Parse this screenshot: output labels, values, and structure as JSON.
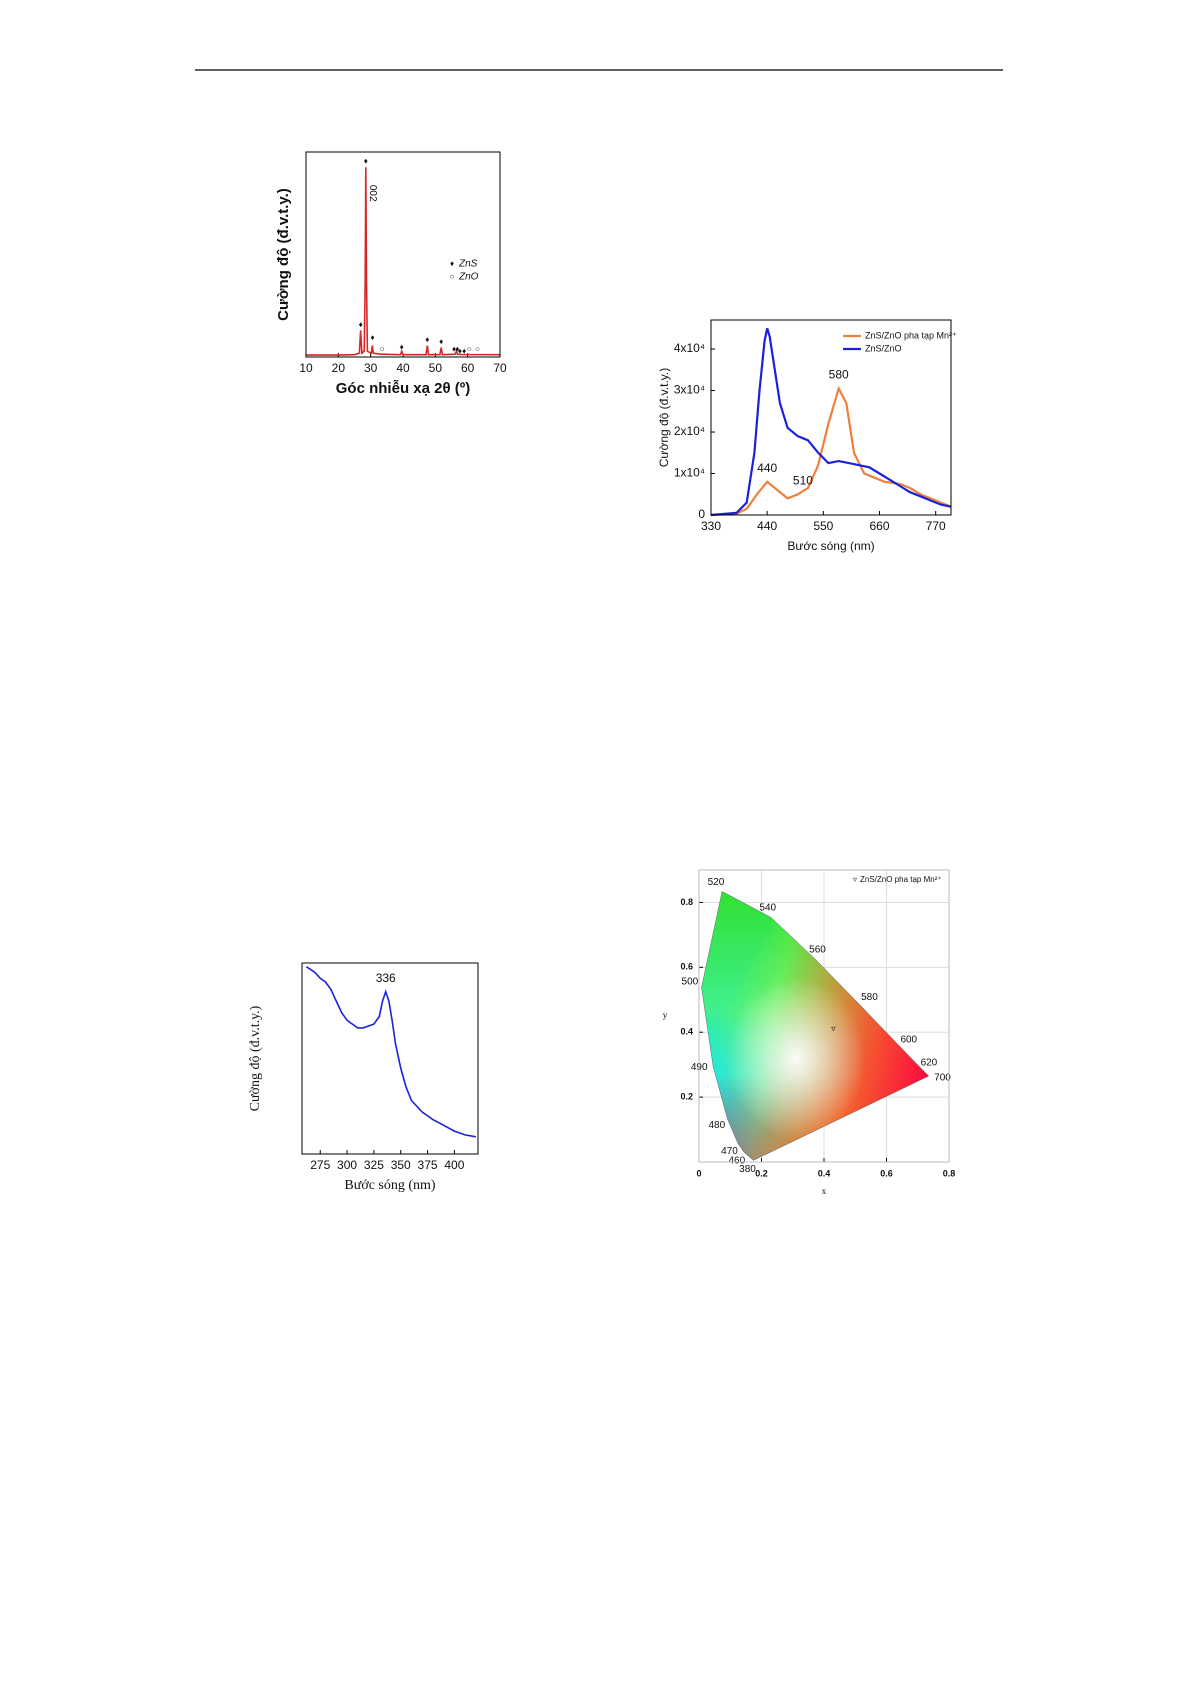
{
  "chart_data": [
    {
      "type": "line",
      "y_label": "Cường độ (đ.v.t.y.)",
      "x_label": "Góc nhiễu xạ 2θ (º)",
      "x": [
        10,
        20,
        25,
        26.5,
        26.9,
        27.3,
        28,
        28.3,
        28.5,
        28.7,
        29,
        30.2,
        30.5,
        30.8,
        33,
        39.2,
        39.6,
        40,
        47.1,
        47.5,
        47.9,
        51.4,
        51.8,
        52.2,
        56.1,
        56.5,
        56.9,
        58,
        70
      ],
      "values": [
        1,
        1,
        1.2,
        2,
        14,
        2,
        3,
        40,
        100,
        40,
        3,
        2,
        6,
        2,
        1.5,
        1.2,
        3,
        1.2,
        1.2,
        6,
        1.2,
        1.2,
        5,
        1.2,
        1.5,
        3,
        1.5,
        1.3,
        1.2
      ],
      "color": "#d62728",
      "xlim": [
        10,
        70
      ],
      "xticks": [
        10,
        20,
        30,
        40,
        50,
        60,
        70
      ],
      "ylim": [
        0,
        108
      ],
      "annotations": [
        {
          "label": "002",
          "x": 28.5
        }
      ],
      "markers": [
        {
          "name": "ZnS",
          "symbol": "♦",
          "color": "#111",
          "x": [
            26.9,
            28.5,
            30.6,
            39.6,
            47.5,
            51.8,
            55.8,
            56.8,
            57.6,
            58.9
          ],
          "y": [
            17,
            103,
            10,
            5,
            9,
            8,
            4,
            4,
            3,
            3
          ]
        },
        {
          "name": "ZnO",
          "symbol": "○",
          "color": "#555",
          "x": [
            33.5,
            60.5,
            63
          ],
          "y": [
            4,
            4,
            4
          ]
        }
      ]
    },
    {
      "type": "line",
      "y_label": "Cường độ (đ.v.t.y.)",
      "x_label": "Bước sóng (nm)",
      "xlim": [
        330,
        800
      ],
      "xticks": [
        330,
        440,
        550,
        660,
        770
      ],
      "ylim": [
        0,
        47000
      ],
      "yticks": [
        0,
        {
          "value": 10000,
          "label": "1x10⁴"
        },
        {
          "value": 20000,
          "label": "2x10⁴"
        },
        {
          "value": 30000,
          "label": "3x10⁴"
        },
        {
          "value": 40000,
          "label": "4x10⁴"
        }
      ],
      "legend": "upper right",
      "series": [
        {
          "name": "ZnS/ZnO pha tạp Mn²⁺",
          "color": "#f07f3c",
          "x": [
            330,
            380,
            400,
            420,
            440,
            460,
            480,
            500,
            520,
            540,
            560,
            580,
            595,
            610,
            630,
            650,
            670,
            700,
            720,
            740,
            760,
            780,
            800
          ],
          "values": [
            0,
            300,
            1500,
            5000,
            8000,
            6000,
            4000,
            5000,
            6500,
            12000,
            22000,
            30500,
            27000,
            15000,
            10000,
            9000,
            8000,
            7500,
            6500,
            5000,
            4000,
            3000,
            2000
          ]
        },
        {
          "name": "ZnS/ZnO",
          "color": "#1a22d8",
          "x": [
            330,
            380,
            400,
            415,
            425,
            435,
            440,
            445,
            455,
            465,
            480,
            500,
            520,
            540,
            560,
            580,
            600,
            620,
            640,
            660,
            680,
            700,
            720,
            740,
            760,
            780,
            800
          ],
          "values": [
            0,
            500,
            3000,
            15000,
            30000,
            42000,
            45000,
            43000,
            35000,
            27000,
            21000,
            19000,
            18000,
            15000,
            12500,
            13000,
            12500,
            12000,
            11500,
            10000,
            8500,
            7000,
            5500,
            4500,
            3500,
            2500,
            2000
          ]
        }
      ],
      "annotations": [
        {
          "label": "440",
          "x": 440
        },
        {
          "label": "510",
          "x": 510
        },
        {
          "label": "580",
          "x": 580
        }
      ]
    },
    {
      "type": "line",
      "y_label": "Cường độ (đ.v.t.y.)",
      "x_label": "Bước sóng (nm)",
      "x": [
        262,
        265,
        270,
        275,
        280,
        285,
        290,
        295,
        300,
        305,
        310,
        315,
        320,
        325,
        330,
        333,
        336,
        339,
        342,
        345,
        350,
        355,
        360,
        370,
        380,
        390,
        400,
        410,
        420
      ],
      "values": [
        98,
        97,
        95,
        92,
        90,
        86,
        80,
        74,
        70,
        68,
        66,
        66,
        67,
        68,
        72,
        80,
        85,
        80,
        70,
        58,
        45,
        35,
        28,
        22,
        18,
        15,
        12,
        10,
        9
      ],
      "color": "#1a22d8",
      "xlim": [
        258,
        422
      ],
      "xticks": [
        275,
        300,
        325,
        350,
        375,
        400
      ],
      "ylim": [
        0,
        100
      ],
      "annotations": [
        {
          "label": "336",
          "x": 336
        }
      ]
    },
    {
      "type": "cie",
      "x_label": "x",
      "y_label": "y",
      "xlim": [
        0,
        0.8
      ],
      "xticks": [
        0,
        0.2,
        0.4,
        0.6,
        0.8
      ],
      "ylim": [
        0,
        0.9
      ],
      "yticks": [
        0.2,
        0.4,
        0.6,
        0.8
      ],
      "grid": true,
      "locus": [
        {
          "label": "380",
          "x": 0.174,
          "y": 0.005
        },
        {
          "label": "460",
          "x": 0.144,
          "y": 0.03
        },
        {
          "label": "470",
          "x": 0.124,
          "y": 0.058
        },
        {
          "label": "480",
          "x": 0.091,
          "y": 0.133
        },
        {
          "label": "490",
          "x": 0.045,
          "y": 0.295
        },
        {
          "label": "500",
          "x": 0.008,
          "y": 0.538
        },
        {
          "label": "520",
          "x": 0.074,
          "y": 0.834
        },
        {
          "label": "540",
          "x": 0.23,
          "y": 0.754
        },
        {
          "label": "560",
          "x": 0.373,
          "y": 0.624
        },
        {
          "label": "580",
          "x": 0.512,
          "y": 0.487
        },
        {
          "label": "600",
          "x": 0.627,
          "y": 0.372
        },
        {
          "label": "620",
          "x": 0.691,
          "y": 0.308
        },
        {
          "label": "700",
          "x": 0.735,
          "y": 0.265
        }
      ],
      "point": {
        "name": "ZnS/ZnO pha tạp Mn²⁺",
        "symbol": "▿",
        "x": 0.43,
        "y": 0.41
      }
    }
  ]
}
